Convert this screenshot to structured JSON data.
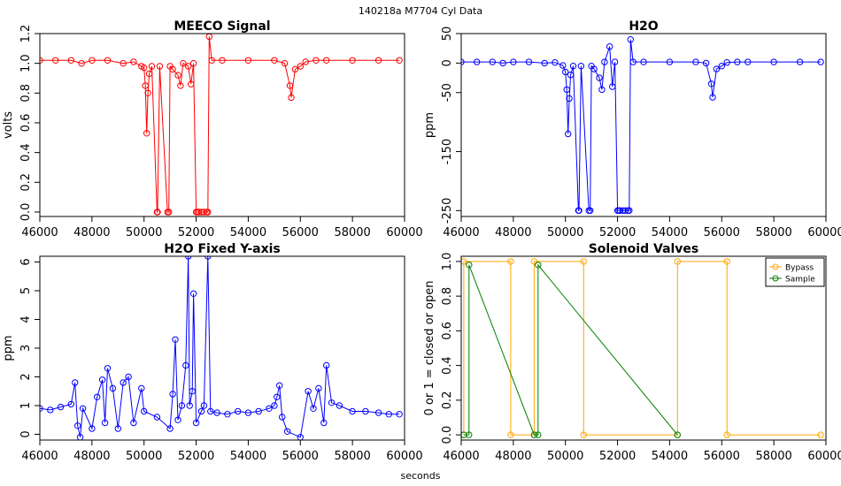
{
  "page": {
    "suptitle": "140218a    M7704    Cyl Data",
    "xlabel": "seconds"
  },
  "chart_data": [
    {
      "type": "scatter",
      "title": "MEECO Signal",
      "ylabel": "volts",
      "xlim": [
        46000,
        60000
      ],
      "ylim": [
        -0.03,
        1.2
      ],
      "xticks": [
        46000,
        48000,
        50000,
        52000,
        54000,
        56000,
        58000,
        60000
      ],
      "yticks": [
        0.0,
        0.2,
        0.4,
        0.6,
        0.8,
        1.0,
        1.2
      ],
      "ytick_labels": [
        "0.0",
        "0.2",
        "0.4",
        "0.6",
        "0.8",
        "1.0",
        "1.2"
      ],
      "series": [
        {
          "color": "#ff0000",
          "x": [
            46000,
            46600,
            47200,
            47600,
            48000,
            48600,
            49200,
            49600,
            49900,
            50000,
            50050,
            50100,
            50150,
            50200,
            50300,
            50500,
            50520,
            50600,
            50900,
            50950,
            51000,
            51100,
            51300,
            51400,
            51500,
            51700,
            51800,
            51900,
            52000,
            52050,
            52100,
            52200,
            52300,
            52400,
            52450,
            52500,
            52600,
            53000,
            54000,
            55000,
            55400,
            55600,
            55650,
            55800,
            56000,
            56200,
            56600,
            57000,
            58000,
            59000,
            59800
          ],
          "y": [
            1.02,
            1.02,
            1.02,
            1.0,
            1.02,
            1.02,
            1.0,
            1.01,
            0.98,
            0.97,
            0.85,
            0.53,
            0.8,
            0.93,
            0.98,
            0.0,
            0.0,
            0.98,
            0.0,
            0.0,
            0.98,
            0.96,
            0.92,
            0.85,
            1.0,
            0.98,
            0.86,
            1.0,
            0.0,
            0.0,
            0.0,
            0.0,
            0.0,
            0.0,
            0.0,
            1.18,
            1.02,
            1.02,
            1.02,
            1.02,
            1.0,
            0.85,
            0.77,
            0.96,
            0.98,
            1.01,
            1.02,
            1.02,
            1.02,
            1.02,
            1.02
          ]
        }
      ]
    },
    {
      "type": "scatter",
      "title": "H2O",
      "ylabel": "ppm",
      "xlim": [
        46000,
        60000
      ],
      "ylim": [
        -260,
        50
      ],
      "xticks": [
        46000,
        48000,
        50000,
        52000,
        54000,
        56000,
        58000,
        60000
      ],
      "yticks": [
        50,
        0,
        -50,
        -150,
        -250
      ],
      "ytick_labels": [
        "50",
        "0",
        "-50",
        "-150",
        "-250"
      ],
      "series": [
        {
          "color": "#0000ff",
          "x": [
            46000,
            46600,
            47200,
            47600,
            48000,
            48600,
            49200,
            49600,
            49900,
            50000,
            50050,
            50100,
            50150,
            50200,
            50300,
            50500,
            50520,
            50600,
            50900,
            50950,
            51000,
            51100,
            51300,
            51400,
            51500,
            51700,
            51800,
            51900,
            52000,
            52050,
            52100,
            52200,
            52300,
            52400,
            52450,
            52500,
            52600,
            53000,
            54000,
            55000,
            55400,
            55600,
            55650,
            55800,
            56000,
            56200,
            56600,
            57000,
            58000,
            59000,
            59800
          ],
          "y": [
            2,
            2,
            2,
            0,
            2,
            2,
            0,
            1,
            -4,
            -15,
            -45,
            -120,
            -60,
            -20,
            -5,
            -250,
            -250,
            -5,
            -250,
            -250,
            -5,
            -10,
            -25,
            -45,
            2,
            28,
            -40,
            2,
            -250,
            -250,
            -250,
            -250,
            -250,
            -250,
            -250,
            40,
            2,
            2,
            2,
            2,
            0,
            -35,
            -58,
            -10,
            -5,
            1,
            2,
            2,
            2,
            2,
            2
          ]
        }
      ]
    },
    {
      "type": "line",
      "title": "H2O Fixed Y-axis",
      "ylabel": "ppm",
      "xlim": [
        46000,
        60000
      ],
      "ylim": [
        -0.2,
        6.2
      ],
      "xticks": [
        46000,
        48000,
        50000,
        52000,
        54000,
        56000,
        58000,
        60000
      ],
      "yticks": [
        0,
        1,
        2,
        3,
        4,
        5,
        6
      ],
      "ytick_labels": [
        "0",
        "1",
        "2",
        "3",
        "4",
        "5",
        "6"
      ],
      "series": [
        {
          "color": "#0000ff",
          "x": [
            46000,
            46400,
            46800,
            47200,
            47350,
            47450,
            47550,
            47650,
            48000,
            48200,
            48400,
            48500,
            48600,
            48800,
            49000,
            49200,
            49400,
            49600,
            49900,
            50000,
            50500,
            51000,
            51100,
            51200,
            51300,
            51450,
            51600,
            51700,
            51750,
            51850,
            51900,
            52000,
            52200,
            52300,
            52450,
            52550,
            52800,
            53200,
            53600,
            54000,
            54400,
            54800,
            55000,
            55100,
            55200,
            55300,
            55500,
            56000,
            56300,
            56500,
            56700,
            56900,
            57000,
            57200,
            57500,
            58000,
            58500,
            59000,
            59400,
            59800
          ],
          "y": [
            0.9,
            0.85,
            0.95,
            1.05,
            1.8,
            0.3,
            -0.1,
            0.9,
            0.2,
            1.3,
            1.9,
            0.4,
            2.3,
            1.6,
            0.2,
            1.8,
            2.0,
            0.4,
            1.6,
            0.8,
            0.6,
            0.2,
            1.4,
            3.3,
            0.5,
            1.0,
            2.4,
            6.2,
            1.0,
            1.5,
            4.9,
            0.4,
            0.8,
            1.0,
            6.2,
            0.8,
            0.75,
            0.7,
            0.8,
            0.75,
            0.8,
            0.9,
            1.0,
            1.3,
            1.7,
            0.6,
            0.1,
            -0.1,
            1.5,
            0.9,
            1.6,
            0.4,
            2.4,
            1.1,
            1.0,
            0.8,
            0.8,
            0.75,
            0.7,
            0.7
          ]
        }
      ]
    },
    {
      "type": "line",
      "title": "Solenoid Valves",
      "ylabel": "0 or 1 = closed or open",
      "xlim": [
        46000,
        60000
      ],
      "ylim": [
        -0.03,
        1.03
      ],
      "xticks": [
        46000,
        48000,
        50000,
        52000,
        54000,
        56000,
        58000,
        60000
      ],
      "yticks": [
        0.0,
        0.2,
        0.4,
        0.6,
        0.8,
        1.0
      ],
      "ytick_labels": [
        "0.0",
        "0.2",
        "0.4",
        "0.6",
        "0.8",
        "1.0"
      ],
      "legend_position": "top-right",
      "series": [
        {
          "name": "Bypass",
          "color": "#ffa500",
          "x": [
            46100,
            46100,
            47900,
            47900,
            48800,
            48800,
            50700,
            50700,
            54300,
            54300,
            56200,
            56200,
            59800
          ],
          "y": [
            0,
            1,
            1,
            0,
            0,
            1,
            1,
            0,
            0,
            1,
            1,
            0,
            0
          ]
        },
        {
          "name": "Sample",
          "color": "#008000",
          "x": [
            46100,
            46300,
            46300,
            48800,
            48950,
            48950,
            54300
          ],
          "y": [
            0,
            0,
            0.98,
            0,
            0,
            0.98,
            0
          ]
        }
      ]
    }
  ]
}
